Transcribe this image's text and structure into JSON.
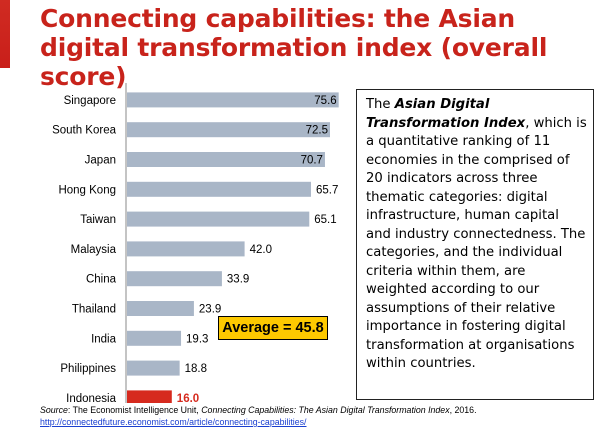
{
  "title": "Connecting capabilities: the Asian digital transformation index (overall score)",
  "chart_data": {
    "type": "bar",
    "orientation": "horizontal",
    "categories": [
      "Singapore",
      "South Korea",
      "Japan",
      "Hong Kong",
      "Taiwan",
      "Malaysia",
      "China",
      "Thailand",
      "India",
      "Philippines",
      "Indonesia"
    ],
    "values": [
      75.6,
      72.5,
      70.7,
      65.7,
      65.1,
      42.0,
      33.9,
      23.9,
      19.3,
      18.8,
      16.0
    ],
    "value_labels": [
      "75.6",
      "72.5",
      "70.7",
      "65.7",
      "65.1",
      "42.0",
      "33.9",
      "23.9",
      "19.3",
      "18.8",
      "16.0"
    ],
    "highlight_category": "Indonesia",
    "xlim": [
      0,
      80
    ],
    "grid": false,
    "colors": {
      "bar": "#a9b6c7",
      "bar_highlight": "#d62a1e",
      "axis": "#888888"
    }
  },
  "average": {
    "label": "Average = 45.8",
    "bg_color": "#fdc900"
  },
  "description": {
    "intro": "The ",
    "emphasis": "Asian Digital Transformation Index",
    "body": ", which is a quantitative ranking of 11 economies in the comprised of 20 indicators across three thematic categories: digital infrastructure, human capital and industry connectedness. The categories, and the individual criteria within them, are weighted according to our assumptions of their relative importance in fostering digital transformation at organisations within countries."
  },
  "source": {
    "label": "Source",
    "prefix": ": The Economist Intelligence Unit, ",
    "publication": "Connecting Capabilities: The Asian Digital Transformation Index",
    "suffix": ", 2016.",
    "url": "http://connectedfuture.economist.com/article/connecting-capabilities/"
  },
  "colors": {
    "title": "#c8231b",
    "accent_bar": "#d02b22",
    "link": "#1a3fd0"
  }
}
